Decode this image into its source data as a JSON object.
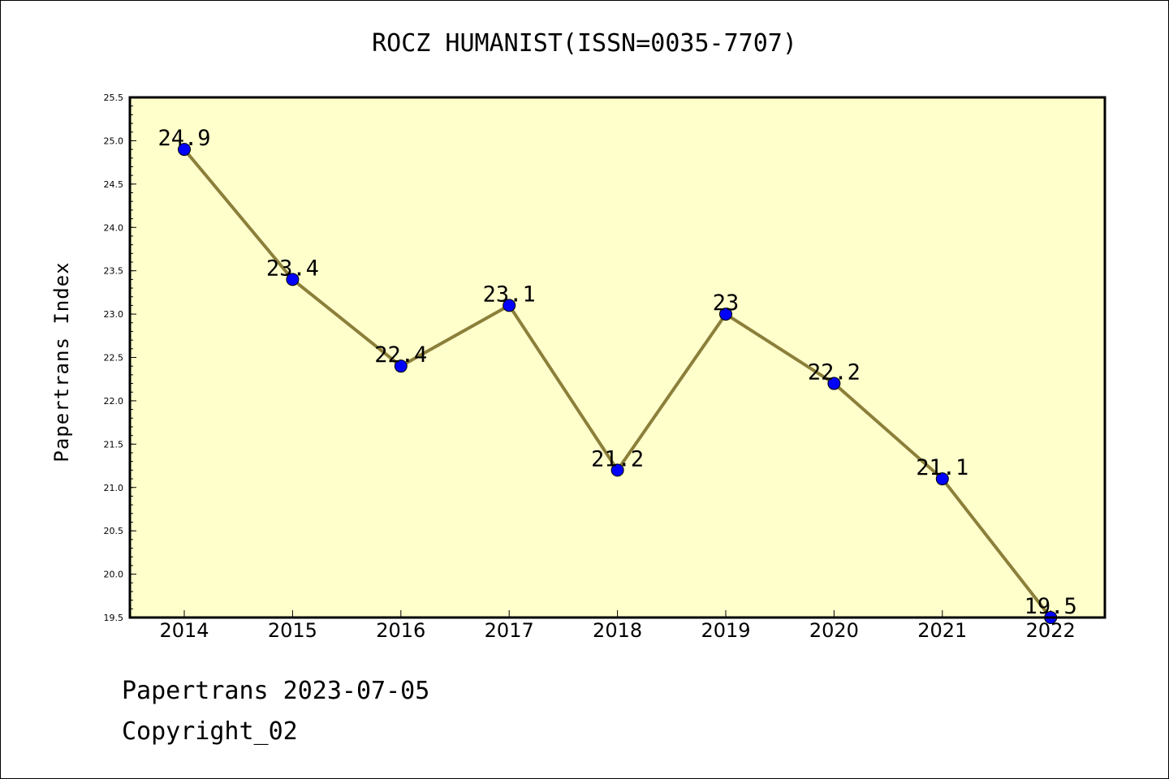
{
  "chart_data": {
    "type": "line",
    "title": "ROCZ HUMANIST(ISSN=0035-7707)",
    "xlabel": "",
    "ylabel": "Papertrans Index",
    "categories": [
      "2014",
      "2015",
      "2016",
      "2017",
      "2018",
      "2019",
      "2020",
      "2021",
      "2022"
    ],
    "series": [
      {
        "values": [
          24.9,
          23.4,
          22.4,
          23.1,
          21.2,
          23.0,
          22.2,
          21.1,
          19.5
        ],
        "data_labels": [
          "24.9",
          "23.4",
          "22.4",
          "23.1",
          "21.2",
          "23",
          "22.2",
          "21.1",
          "19.5"
        ]
      }
    ],
    "ylim": [
      19.5,
      25.5
    ],
    "yticks": [
      "19.5",
      "20.0",
      "20.5",
      "21.0",
      "21.5",
      "22.0",
      "22.5",
      "23.0",
      "23.5",
      "24.0",
      "24.5",
      "25.0",
      "25.5"
    ],
    "grid": false,
    "legend": "none",
    "colors": {
      "plot_background": "#ffffcc",
      "line": "#8b7f3a",
      "marker": "#0000ff"
    }
  },
  "footer": {
    "date_line": "Papertrans 2023-07-05",
    "copyright": "Copyright_02"
  }
}
